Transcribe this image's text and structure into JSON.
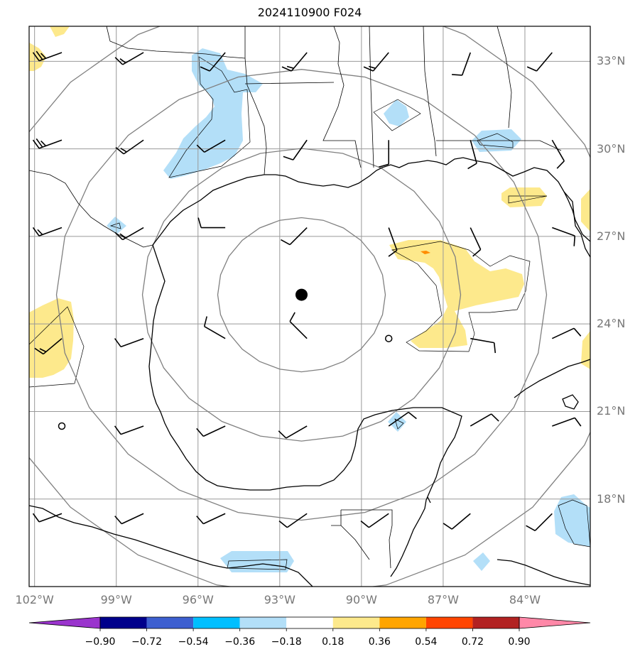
{
  "title": "2024110900 F024",
  "map": {
    "projection": "plate-carree",
    "extent": {
      "lon_min": -102.2,
      "lon_max": -81.6,
      "lat_min": 15.0,
      "lat_max": 34.2
    },
    "center_marker": {
      "lon": -92.2,
      "lat": 25.0,
      "label": ""
    },
    "range_rings_count": 4,
    "lat_ticks": [
      "33°N",
      "30°N",
      "27°N",
      "24°N",
      "21°N",
      "18°N"
    ],
    "lon_ticks": [
      "102°W",
      "99°W",
      "96°W",
      "93°W",
      "90°W",
      "87°W",
      "84°W"
    ],
    "colors": {
      "coastline": "#000000",
      "gridlines": "#999999",
      "range_rings": "#808080",
      "positive_fill": "#fde98c",
      "negative_fill": "#b3dff8",
      "highlight_fill": "#ff8c00"
    }
  },
  "colorbar": {
    "ticks": [
      "−0.90",
      "−0.72",
      "−0.54",
      "−0.36",
      "−0.18",
      "0.18",
      "0.36",
      "0.54",
      "0.72",
      "0.90"
    ],
    "colors": [
      "#9a34cd",
      "#00008b",
      "#3d5fd0",
      "#00bfff",
      "#b3dff8",
      "#ffffff",
      "#fde98c",
      "#ffa500",
      "#ff4500",
      "#b22222",
      "#ff88a8"
    ]
  },
  "positive_regions": [
    {
      "name": "gulf-east-anomaly",
      "center_lon": -87.8,
      "center_lat": 26.0
    },
    {
      "name": "sw-mexico-anomaly",
      "center_lon": -101.4,
      "center_lat": 24.5
    },
    {
      "name": "florida-panhandle-anomaly",
      "center_lon": -85.2,
      "center_lat": 29.2
    },
    {
      "name": "nw-corner-anomaly",
      "center_lon": -102.0,
      "center_lat": 33.1
    },
    {
      "name": "east-edge-anomaly-north",
      "center_lon": -81.8,
      "center_lat": 28.6
    },
    {
      "name": "east-edge-anomaly-south",
      "center_lon": -81.8,
      "center_lat": 24.0
    }
  ],
  "negative_regions": [
    {
      "name": "texas-louisiana-anomaly",
      "center_lon": -95.6,
      "center_lat": 31.8
    },
    {
      "name": "mississippi-anomaly",
      "center_lon": -88.9,
      "center_lat": 32.0
    },
    {
      "name": "georgia-anomaly",
      "center_lon": -85.2,
      "center_lat": 30.9
    },
    {
      "name": "texas-coast-small-anomaly",
      "center_lon": -100.0,
      "center_lat": 28.0
    },
    {
      "name": "yucatan-small-anomaly",
      "center_lon": -88.8,
      "center_lat": 20.9
    },
    {
      "name": "caribbean-anomaly",
      "center_lon": -82.3,
      "center_lat": 17.6
    },
    {
      "name": "guatemala-anomaly",
      "center_lon": -94.0,
      "center_lat": 15.8
    },
    {
      "name": "belize-small-anomaly",
      "center_lon": -86.0,
      "center_lat": 15.8
    }
  ],
  "wind_barbs": [
    {
      "lon": -101.0,
      "lat": 33.3,
      "dir_deg": 250,
      "barbs": 3
    },
    {
      "lon": -98.0,
      "lat": 33.3,
      "dir_deg": 240,
      "barbs": 2
    },
    {
      "lon": -95.0,
      "lat": 33.3,
      "dir_deg": 220,
      "barbs": 1
    },
    {
      "lon": -92.0,
      "lat": 33.3,
      "dir_deg": 220,
      "barbs": 2
    },
    {
      "lon": -89.0,
      "lat": 33.3,
      "dir_deg": 220,
      "barbs": 2
    },
    {
      "lon": -86.0,
      "lat": 33.3,
      "dir_deg": 200,
      "barbs": 1
    },
    {
      "lon": -83.0,
      "lat": 33.3,
      "dir_deg": 220,
      "barbs": 1
    },
    {
      "lon": -101.0,
      "lat": 30.3,
      "dir_deg": 250,
      "barbs": 3
    },
    {
      "lon": -98.0,
      "lat": 30.3,
      "dir_deg": 235,
      "barbs": 2
    },
    {
      "lon": -95.0,
      "lat": 30.3,
      "dir_deg": 240,
      "barbs": 1
    },
    {
      "lon": -92.0,
      "lat": 30.3,
      "dir_deg": 215,
      "barbs": 1
    },
    {
      "lon": -89.0,
      "lat": 30.3,
      "dir_deg": 180,
      "barbs": 1
    },
    {
      "lon": -86.0,
      "lat": 30.3,
      "dir_deg": 165,
      "barbs": 1
    },
    {
      "lon": -83.0,
      "lat": 30.3,
      "dir_deg": 150,
      "barbs": 1
    },
    {
      "lon": -101.0,
      "lat": 27.3,
      "dir_deg": 250,
      "barbs": 2
    },
    {
      "lon": -98.0,
      "lat": 27.3,
      "dir_deg": 240,
      "barbs": 2
    },
    {
      "lon": -95.0,
      "lat": 27.3,
      "dir_deg": 270,
      "barbs": 1
    },
    {
      "lon": -92.0,
      "lat": 27.3,
      "dir_deg": 225,
      "barbs": 1
    },
    {
      "lon": -89.0,
      "lat": 27.3,
      "dir_deg": 160,
      "barbs": 1
    },
    {
      "lon": -86.0,
      "lat": 27.3,
      "dir_deg": 155,
      "barbs": 1
    },
    {
      "lon": -83.0,
      "lat": 27.3,
      "dir_deg": 110,
      "barbs": 1
    },
    {
      "lon": -101.0,
      "lat": 23.5,
      "dir_deg": 230,
      "barbs": 2
    },
    {
      "lon": -98.0,
      "lat": 23.5,
      "dir_deg": 250,
      "barbs": 1
    },
    {
      "lon": -95.0,
      "lat": 23.5,
      "dir_deg": 300,
      "barbs": 1
    },
    {
      "lon": -92.0,
      "lat": 23.5,
      "dir_deg": 315,
      "barbs": 1
    },
    {
      "lon": -89.0,
      "lat": 23.5,
      "dir_deg": null,
      "barbs": 0
    },
    {
      "lon": -86.0,
      "lat": 23.5,
      "dir_deg": 100,
      "barbs": 1
    },
    {
      "lon": -83.0,
      "lat": 23.5,
      "dir_deg": 65,
      "barbs": 1
    },
    {
      "lon": -101.0,
      "lat": 20.5,
      "dir_deg": null,
      "barbs": 0
    },
    {
      "lon": -98.0,
      "lat": 20.5,
      "dir_deg": 250,
      "barbs": 1
    },
    {
      "lon": -95.0,
      "lat": 20.5,
      "dir_deg": 245,
      "barbs": 1
    },
    {
      "lon": -92.0,
      "lat": 20.5,
      "dir_deg": 240,
      "barbs": 1
    },
    {
      "lon": -89.0,
      "lat": 20.5,
      "dir_deg": 55,
      "barbs": 1
    },
    {
      "lon": -86.0,
      "lat": 20.5,
      "dir_deg": 60,
      "barbs": 1
    },
    {
      "lon": -83.0,
      "lat": 20.5,
      "dir_deg": 70,
      "barbs": 1
    },
    {
      "lon": -101.0,
      "lat": 17.5,
      "dir_deg": 250,
      "barbs": 1
    },
    {
      "lon": -98.0,
      "lat": 17.5,
      "dir_deg": 245,
      "barbs": 1
    },
    {
      "lon": -95.0,
      "lat": 17.5,
      "dir_deg": 245,
      "barbs": 1
    },
    {
      "lon": -92.0,
      "lat": 17.5,
      "dir_deg": 235,
      "barbs": 1
    },
    {
      "lon": -89.0,
      "lat": 17.5,
      "dir_deg": 235,
      "barbs": 1
    },
    {
      "lon": -86.0,
      "lat": 17.5,
      "dir_deg": 230,
      "barbs": 1
    },
    {
      "lon": -83.0,
      "lat": 17.5,
      "dir_deg": 225,
      "barbs": 1
    }
  ]
}
